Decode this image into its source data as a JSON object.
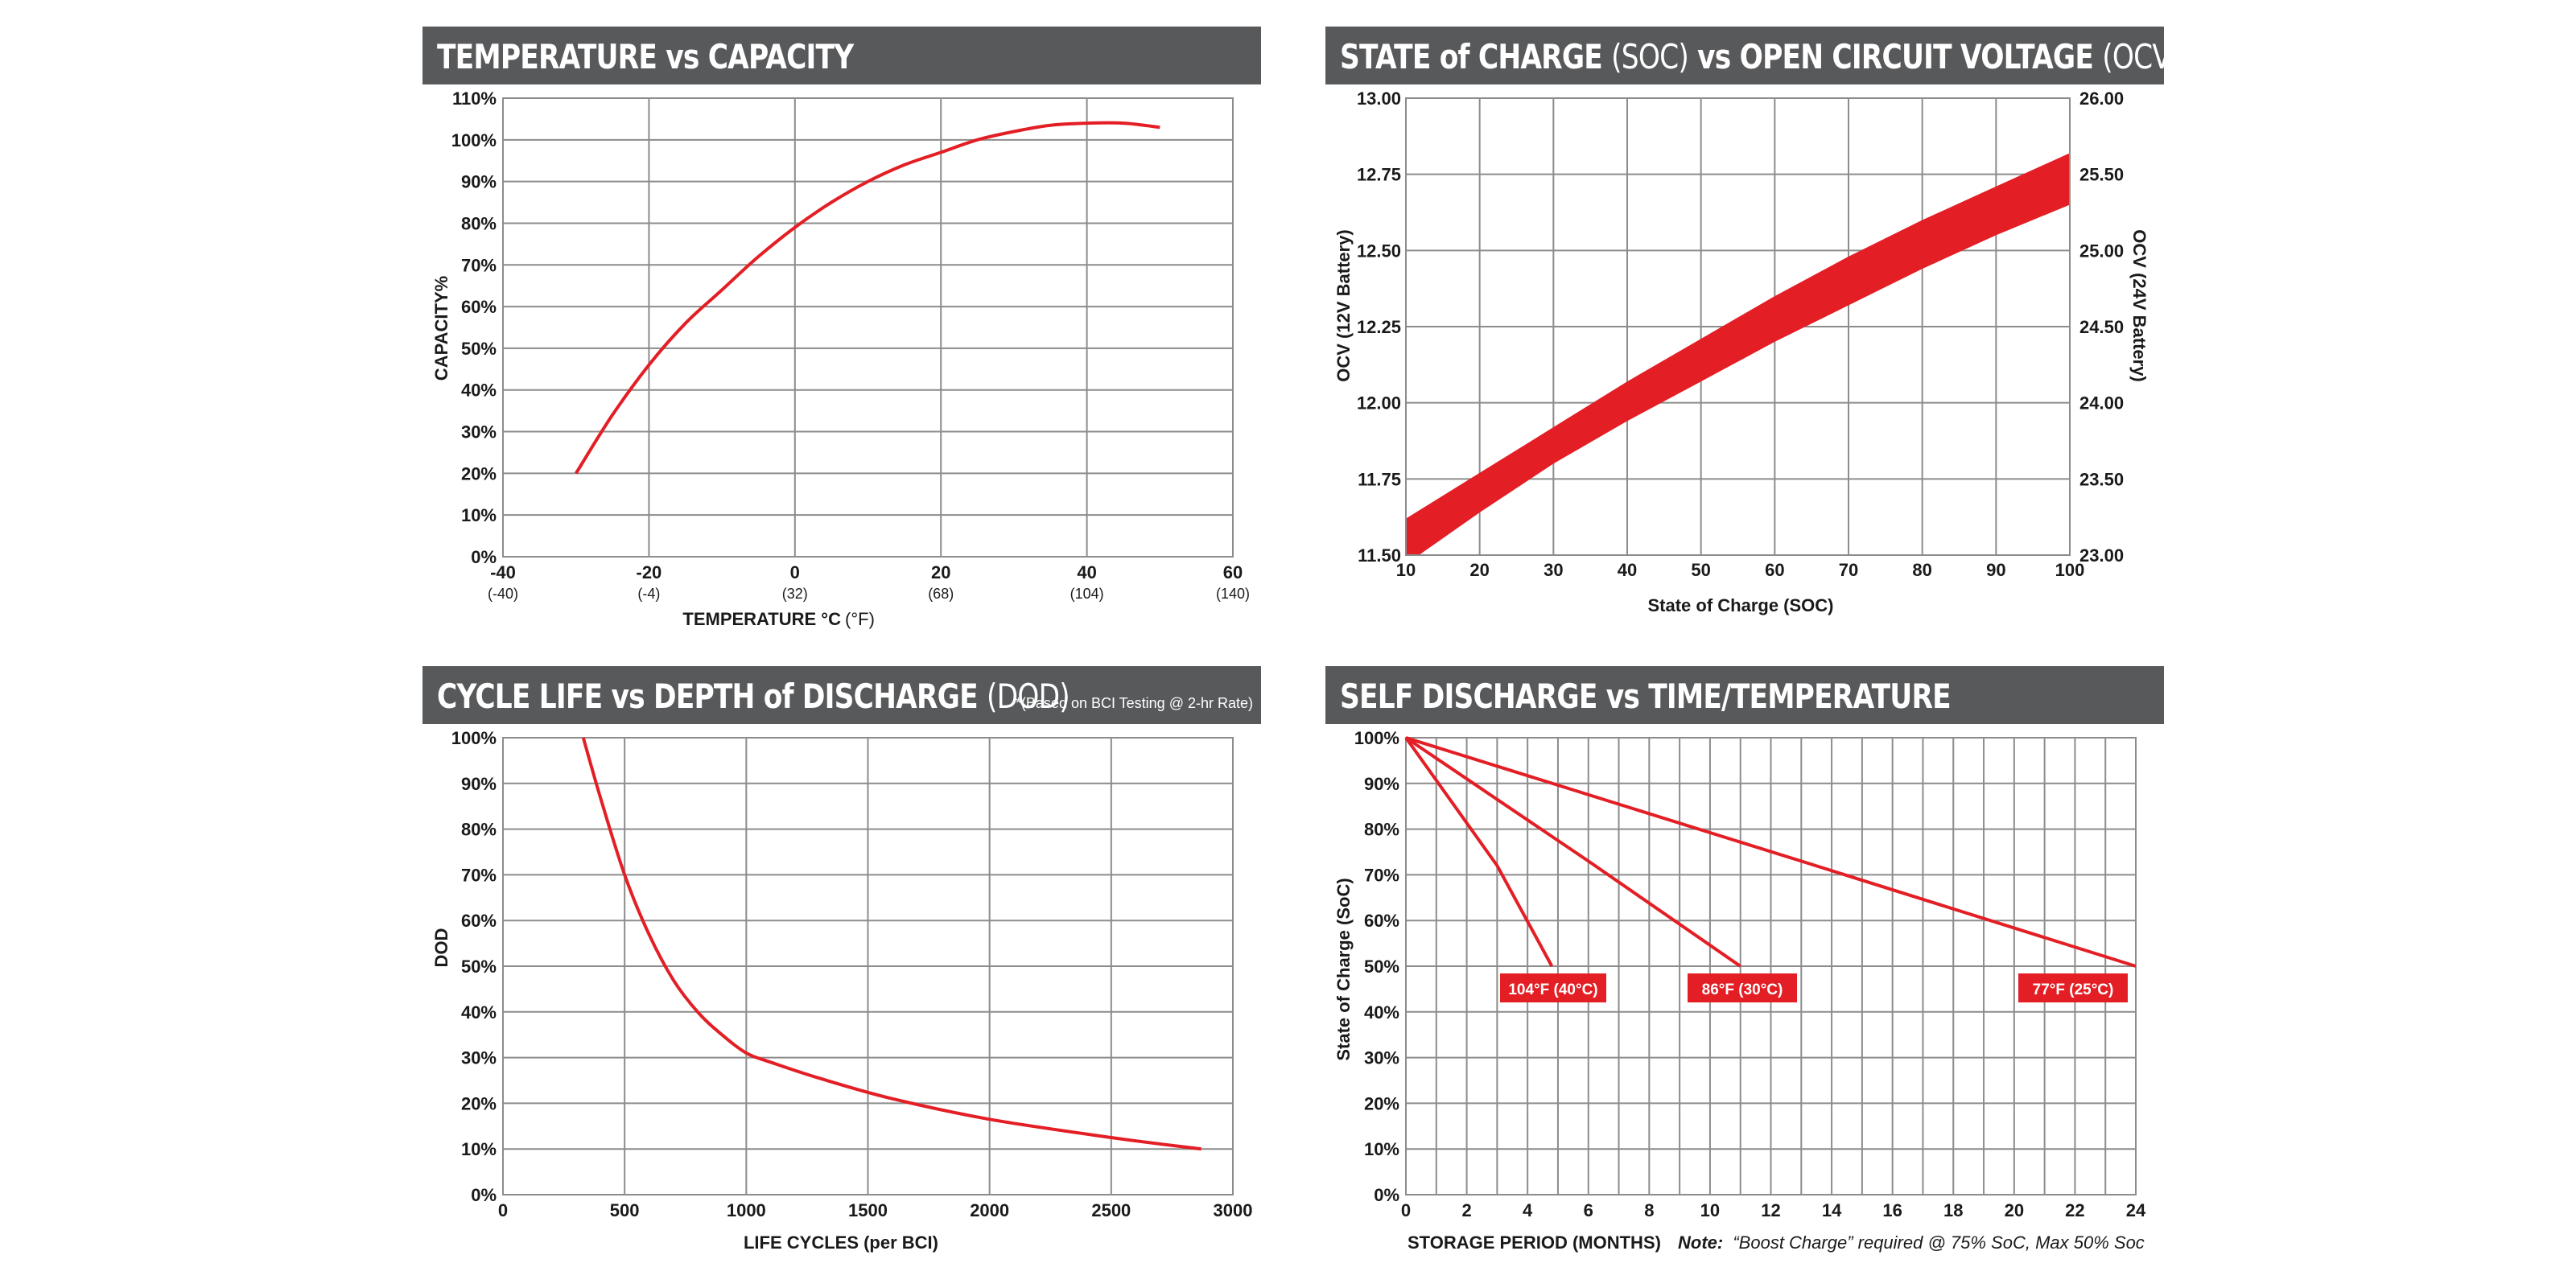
{
  "accent_color": "#e31e25",
  "header_color": "#58595b",
  "chart_data": [
    {
      "type": "line",
      "title_bold": "TEMPERATURE vs CAPACITY",
      "xlabel_bold": "TEMPERATURE °C",
      "xlabel_rest": "(°F)",
      "ylabel": "CAPACITY%",
      "xlim": [
        -40,
        60
      ],
      "ylim": [
        0,
        110
      ],
      "xticks": [
        "-40",
        "-20",
        "0",
        "20",
        "40",
        "60"
      ],
      "xticks_f": [
        "(-40)",
        "(-4)",
        "(32)",
        "(68)",
        "(104)",
        "(140)"
      ],
      "yticks": [
        "0%",
        "10%",
        "20%",
        "30%",
        "40%",
        "50%",
        "60%",
        "70%",
        "80%",
        "90%",
        "100%",
        "110%"
      ],
      "series": [
        {
          "name": "Capacity",
          "x": [
            -30,
            -25,
            -20,
            -15,
            -10,
            -5,
            0,
            5,
            10,
            15,
            20,
            25,
            30,
            35,
            40,
            45,
            50
          ],
          "y": [
            20,
            34,
            46,
            56,
            64,
            72,
            79,
            85,
            90,
            94,
            97,
            100,
            102,
            103.5,
            104,
            104,
            103
          ]
        }
      ]
    },
    {
      "type": "area",
      "title_bold1": "STATE of CHARGE",
      "title_thin1": "(SOC)",
      "title_bold2": "vs OPEN CIRCUIT VOLTAGE",
      "title_thin2": "(OCV)",
      "xlabel": "State of Charge (SOC)",
      "ylabel": "OCV (12V Battery)",
      "y2label": "OCV (24V Battery)",
      "xlim": [
        10,
        100
      ],
      "ylim": [
        11.5,
        13.0
      ],
      "y2lim": [
        23.0,
        26.0
      ],
      "xticks": [
        "10",
        "20",
        "30",
        "40",
        "50",
        "60",
        "70",
        "80",
        "90",
        "100"
      ],
      "yticks": [
        "11.50",
        "11.75",
        "12.00",
        "12.25",
        "12.50",
        "12.75",
        "13.00"
      ],
      "y2ticks": [
        "23.00",
        "23.50",
        "24.00",
        "24.50",
        "25.00",
        "25.50",
        "26.00"
      ],
      "band_x": [
        10,
        20,
        30,
        40,
        50,
        60,
        70,
        80,
        90,
        100
      ],
      "band_upper": [
        11.62,
        11.77,
        11.92,
        12.07,
        12.21,
        12.35,
        12.48,
        12.6,
        12.71,
        12.82
      ],
      "band_lower": [
        11.47,
        11.64,
        11.8,
        11.94,
        12.07,
        12.2,
        12.32,
        12.44,
        12.55,
        12.65
      ]
    },
    {
      "type": "line",
      "title_bold": "CYCLE LIFE vs DEPTH of DISCHARGE",
      "title_thin": "(DOD)",
      "note": "*(Based on BCI Testing @ 2-hr Rate)",
      "xlabel": "LIFE CYCLES (per BCI)",
      "ylabel": "DOD",
      "xlim": [
        0,
        3000
      ],
      "ylim": [
        0,
        100
      ],
      "xticks": [
        "0",
        "500",
        "1000",
        "1500",
        "2000",
        "2500",
        "3000"
      ],
      "yticks": [
        "0%",
        "10%",
        "20%",
        "30%",
        "40%",
        "50%",
        "60%",
        "70%",
        "80%",
        "90%",
        "100%"
      ],
      "series": [
        {
          "name": "DOD",
          "x": [
            330,
            400,
            500,
            600,
            700,
            800,
            900,
            1000,
            1100,
            1300,
            1600,
            2000,
            2500,
            2870
          ],
          "y": [
            100,
            87,
            70,
            57,
            47,
            40,
            35,
            31,
            29,
            25.5,
            21,
            16.5,
            12.5,
            10
          ]
        }
      ]
    },
    {
      "type": "line",
      "title_bold": "SELF DISCHARGE vs TIME/TEMPERATURE",
      "xlabel": "STORAGE PERIOD (MONTHS)",
      "note_bold": "Note:",
      "note_text": "“Boost Charge” required @ 75% SoC, Max 50% Soc",
      "ylabel": "State of Charge (SoC)",
      "xlim": [
        0,
        24
      ],
      "ylim": [
        0,
        100
      ],
      "xticks": [
        "0",
        "2",
        "4",
        "6",
        "8",
        "10",
        "12",
        "14",
        "16",
        "18",
        "20",
        "22",
        "24"
      ],
      "yticks": [
        "0%",
        "10%",
        "20%",
        "30%",
        "40%",
        "50%",
        "60%",
        "70%",
        "80%",
        "90%",
        "100%"
      ],
      "series": [
        {
          "name": "104°F (40°C)",
          "x": [
            0,
            3,
            4.8
          ],
          "y": [
            100,
            72,
            50
          ]
        },
        {
          "name": "86°F (30°C)",
          "x": [
            0,
            6,
            11
          ],
          "y": [
            100,
            73,
            50
          ]
        },
        {
          "name": "77°F (25°C)",
          "x": [
            0,
            13,
            24
          ],
          "y": [
            100,
            73,
            50
          ]
        }
      ],
      "labels": [
        "104°F (40°C)",
        "86°F (30°C)",
        "77°F (25°C)"
      ]
    }
  ]
}
